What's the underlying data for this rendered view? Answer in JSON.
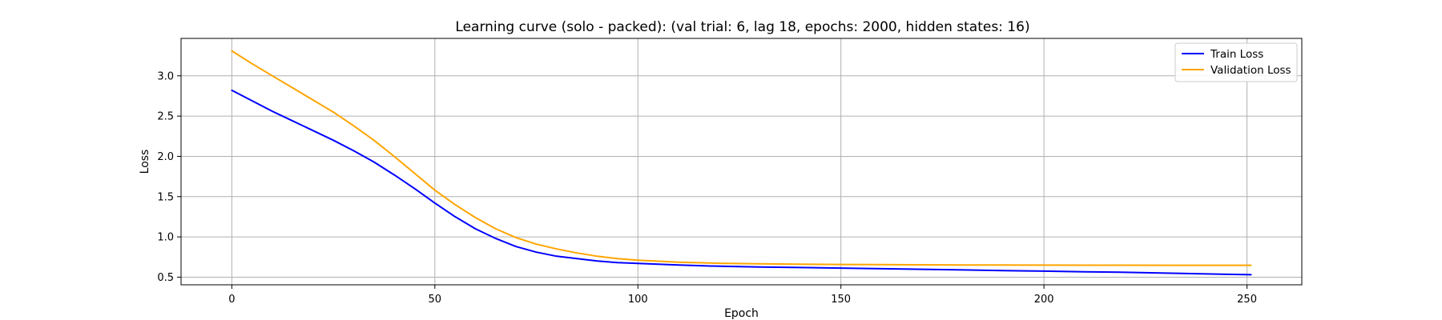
{
  "chart_data": {
    "type": "line",
    "title": "Learning curve (solo - packed): (val trial: 6, lag 18, epochs: 2000, hidden states: 16)",
    "xlabel": "Epoch",
    "ylabel": "Loss",
    "xlim": [
      -12.5,
      263.5
    ],
    "ylim": [
      0.405,
      3.465
    ],
    "xticks": [
      0,
      50,
      100,
      150,
      200,
      250
    ],
    "yticks": [
      0.5,
      1.0,
      1.5,
      2.0,
      2.5,
      3.0
    ],
    "xtick_labels": [
      "0",
      "50",
      "100",
      "150",
      "200",
      "250"
    ],
    "ytick_labels": [
      "0.5",
      "1.0",
      "1.5",
      "2.0",
      "2.5",
      "3.0"
    ],
    "grid": true,
    "legend_position": "top-right",
    "series": [
      {
        "name": "Train Loss",
        "color": "#0000ff",
        "x": [
          0,
          5,
          10,
          15,
          20,
          25,
          30,
          35,
          40,
          45,
          50,
          55,
          60,
          65,
          70,
          75,
          80,
          85,
          90,
          95,
          100,
          110,
          120,
          130,
          140,
          150,
          160,
          170,
          180,
          190,
          200,
          210,
          220,
          230,
          240,
          251
        ],
        "y": [
          2.82,
          2.69,
          2.56,
          2.44,
          2.32,
          2.2,
          2.07,
          1.93,
          1.77,
          1.6,
          1.42,
          1.25,
          1.1,
          0.98,
          0.88,
          0.81,
          0.76,
          0.73,
          0.7,
          0.68,
          0.67,
          0.65,
          0.635,
          0.627,
          0.62,
          0.613,
          0.605,
          0.598,
          0.59,
          0.582,
          0.575,
          0.567,
          0.56,
          0.55,
          0.54,
          0.53
        ]
      },
      {
        "name": "Validation Loss",
        "color": "#ffa500",
        "x": [
          0,
          5,
          10,
          15,
          20,
          25,
          30,
          35,
          40,
          45,
          50,
          55,
          60,
          65,
          70,
          75,
          80,
          85,
          90,
          95,
          100,
          110,
          120,
          130,
          140,
          150,
          160,
          170,
          180,
          190,
          200,
          210,
          220,
          230,
          240,
          251
        ],
        "y": [
          3.31,
          3.15,
          3.0,
          2.85,
          2.7,
          2.55,
          2.38,
          2.2,
          2.0,
          1.79,
          1.58,
          1.4,
          1.24,
          1.1,
          0.99,
          0.91,
          0.85,
          0.8,
          0.76,
          0.73,
          0.71,
          0.685,
          0.672,
          0.665,
          0.66,
          0.657,
          0.655,
          0.653,
          0.651,
          0.65,
          0.649,
          0.648,
          0.648,
          0.647,
          0.647,
          0.647
        ]
      }
    ]
  }
}
